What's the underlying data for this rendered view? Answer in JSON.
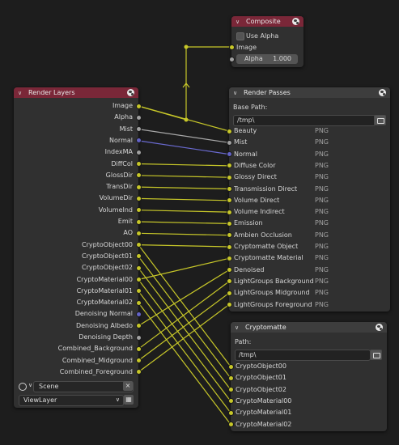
{
  "composite": {
    "title": "Composite",
    "use_alpha_label": "Use Alpha",
    "image_label": "Image",
    "alpha_label": "Alpha",
    "alpha_value": "1.000"
  },
  "render_layers": {
    "title": "Render Layers",
    "outputs": [
      "Image",
      "Alpha",
      "Mist",
      "Normal",
      "IndexMA",
      "DiffCol",
      "GlossDir",
      "TransDir",
      "VolumeDir",
      "VolumeInd",
      "Emit",
      "AO",
      "CryptoObject00",
      "CryptoObject01",
      "CryptoObject02",
      "CryptoMaterial00",
      "CryptoMaterial01",
      "CryptoMaterial02",
      "Denoising Normal",
      "Denoising Albedo",
      "Denoising Depth",
      "Combined_Background",
      "Combined_Midground",
      "Combined_Foreground"
    ],
    "scene_value": "Scene",
    "view_layer_value": "ViewLayer"
  },
  "render_passes": {
    "title": "Render Passes",
    "base_path_label": "Base Path:",
    "base_path_value": "/tmp\\",
    "inputs": [
      "Beauty",
      "Mist",
      "Normal",
      "Diffuse Color",
      "Glossy Direct",
      "Transmission Direct",
      "Volume Direct",
      "Volume Indirect",
      "Emission",
      "Ambien Occlusion",
      "Cryptomatte Object",
      "Cryptomatte Material",
      "Denoised",
      "LightGroups Background",
      "LightGroups Midground",
      "LightGroups Foreground"
    ],
    "format": "PNG"
  },
  "cryptomatte": {
    "title": "Cryptomatte",
    "path_label": "Path:",
    "path_value": "/tmp\\",
    "inputs": [
      "CryptoObject00",
      "CryptoObject01",
      "CryptoObject02",
      "CryptoMaterial00",
      "CryptoMaterial01",
      "CryptoMaterial02"
    ]
  },
  "colors": {
    "socket_color": "#c7c729",
    "socket_float": "#a1a1a1",
    "socket_vector": "#6363c7",
    "wire_color": "#c7c729",
    "wire_float": "#a8a8a8",
    "wire_vector": "#6a6ad0"
  },
  "links": [
    {
      "from": "Image",
      "to": "Composite Image"
    },
    {
      "from": "Image",
      "to": "Beauty"
    },
    {
      "from": "Mist",
      "to": "Mist"
    },
    {
      "from": "Normal",
      "to": "Normal"
    },
    {
      "from": "DiffCol",
      "to": "Diffuse Color"
    },
    {
      "from": "GlossDir",
      "to": "Glossy Direct"
    },
    {
      "from": "TransDir",
      "to": "Transmission Direct"
    },
    {
      "from": "VolumeDir",
      "to": "Volume Direct"
    },
    {
      "from": "VolumeInd",
      "to": "Volume Indirect"
    },
    {
      "from": "Emit",
      "to": "Emission"
    },
    {
      "from": "AO",
      "to": "Ambien Occlusion"
    },
    {
      "from": "CryptoObject00",
      "to": "Cryptomatte Object"
    },
    {
      "from": "CryptoMaterial00",
      "to": "Cryptomatte Material"
    },
    {
      "from": "Denoising Albedo",
      "to": "Denoised"
    },
    {
      "from": "Combined_Background",
      "to": "LightGroups Background"
    },
    {
      "from": "Combined_Midground",
      "to": "LightGroups Midground"
    },
    {
      "from": "Combined_Foreground",
      "to": "LightGroups Foreground"
    },
    {
      "from": "CryptoObject00",
      "to": "CryptoObject00"
    },
    {
      "from": "CryptoObject01",
      "to": "CryptoObject01"
    },
    {
      "from": "CryptoObject02",
      "to": "CryptoObject02"
    },
    {
      "from": "CryptoMaterial00",
      "to": "CryptoMaterial00"
    },
    {
      "from": "CryptoMaterial01",
      "to": "CryptoMaterial01"
    },
    {
      "from": "CryptoMaterial02",
      "to": "CryptoMaterial02"
    }
  ]
}
